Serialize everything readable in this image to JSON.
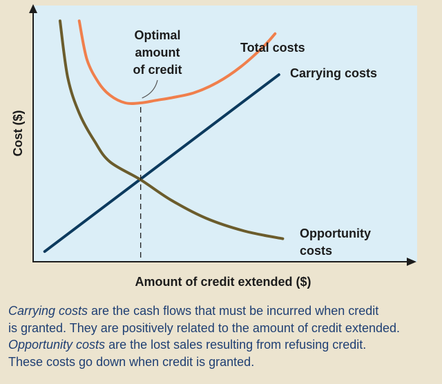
{
  "chart_data": {
    "type": "line",
    "title": "",
    "xlabel": "Amount of credit extended ($)",
    "ylabel": "Cost ($)",
    "xlim": [
      0,
      10
    ],
    "ylim": [
      0,
      10
    ],
    "grid": false,
    "series": [
      {
        "name": "Total costs",
        "color": "#f07f4c",
        "x": [
          1.2,
          1.4,
          1.7,
          2.0,
          2.4,
          2.8,
          3.2,
          3.6,
          4.2,
          4.8,
          5.4,
          6.0,
          6.3
        ],
        "y": [
          9.4,
          7.9,
          7.0,
          6.5,
          6.2,
          6.2,
          6.3,
          6.4,
          6.6,
          7.0,
          7.6,
          8.4,
          8.9
        ]
      },
      {
        "name": "Carrying costs",
        "color": "#0c3a5e",
        "x": [
          0.3,
          6.4
        ],
        "y": [
          0.4,
          7.3
        ]
      },
      {
        "name": "Opportunity costs",
        "color": "#6b5c2c",
        "x": [
          0.7,
          0.9,
          1.2,
          1.6,
          2.0,
          2.8,
          3.6,
          4.5,
          5.5,
          6.5
        ],
        "y": [
          9.4,
          7.2,
          5.8,
          4.7,
          3.9,
          3.2,
          2.4,
          1.7,
          1.2,
          0.9
        ]
      }
    ],
    "optimal": {
      "x": 2.8,
      "y": 6.2
    },
    "annotations": {
      "optimal": [
        "Optimal",
        "amount",
        "of credit"
      ],
      "total": "Total costs",
      "carrying": "Carrying costs",
      "opportunity": [
        "Opportunity",
        "costs"
      ]
    }
  },
  "caption": {
    "lines": [
      {
        "term": "Carrying costs",
        "text": " are the cash flows that must be incurred when credit"
      },
      {
        "term": "",
        "text": "is granted. They are positively related to the amount of credit extended."
      },
      {
        "term": "Opportunity costs",
        "text": " are the lost sales resulting from refusing credit."
      },
      {
        "term": "",
        "text": "These costs go down when credit is granted."
      }
    ]
  },
  "colors": {
    "plot_bg": "#dbeef7",
    "page_bg": "#ece4cf",
    "caption": "#1f3f73",
    "axis": "#1c1c1c"
  }
}
